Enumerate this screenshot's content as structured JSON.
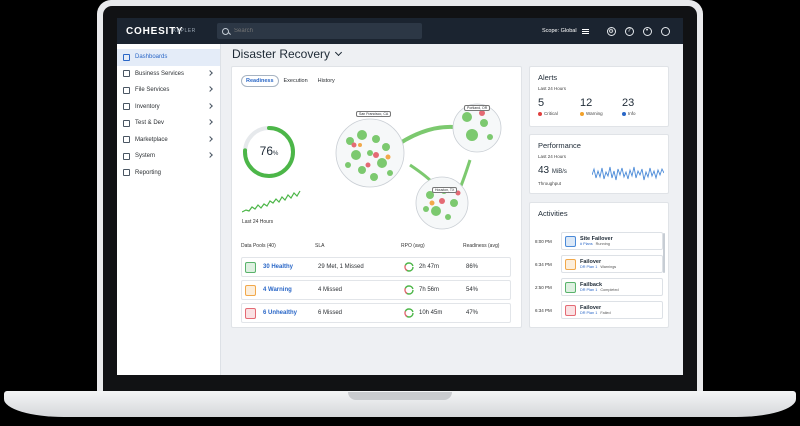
{
  "app": {
    "logo": "COHESITY",
    "product": "KEPLER"
  },
  "topbar": {
    "search_placeholder": "Search",
    "scope_label": "Scope: Global"
  },
  "sidebar": {
    "items": [
      {
        "label": "Dashboards",
        "icon": "dashboard-icon",
        "active": true,
        "chevron": false
      },
      {
        "label": "Business Services",
        "icon": "briefcase-icon",
        "chevron": true
      },
      {
        "label": "File Services",
        "icon": "folder-icon",
        "chevron": true
      },
      {
        "label": "Inventory",
        "icon": "inventory-icon",
        "chevron": true
      },
      {
        "label": "Test & Dev",
        "icon": "test-icon",
        "chevron": true
      },
      {
        "label": "Marketplace",
        "icon": "marketplace-icon",
        "chevron": true
      },
      {
        "label": "System",
        "icon": "system-icon",
        "chevron": true
      },
      {
        "label": "Reporting",
        "icon": "reporting-icon",
        "chevron": false
      }
    ]
  },
  "page": {
    "title": "Disaster Recovery"
  },
  "main": {
    "tabs": [
      {
        "label": "Readiness",
        "active": true
      },
      {
        "label": "Execution"
      },
      {
        "label": "History"
      }
    ],
    "readiness_value": "76",
    "readiness_unit": "%",
    "readiness_fraction": 0.76,
    "last24": "Last 24 Hours",
    "sites": [
      "San Francisco, CA",
      "Portland, OR",
      "Houston, TX"
    ],
    "pools_headers": [
      "Data Pools (40)",
      "SLA",
      "RPO (avg)",
      "Readiness (avg)"
    ],
    "pools": [
      {
        "name": "30 Healthy",
        "sla": "29 Met, 1 Missed",
        "rpo": "2h 47m",
        "readiness": "86%",
        "color": "#59b36b"
      },
      {
        "name": "4 Warning",
        "sla": "4 Missed",
        "rpo": "7h 56m",
        "readiness": "54%",
        "color": "#f1a84a"
      },
      {
        "name": "6 Unhealthy",
        "sla": "6 Missed",
        "rpo": "10h 45m",
        "readiness": "47%",
        "color": "#e46a74"
      }
    ]
  },
  "alerts": {
    "title": "Alerts",
    "sub": "Last 24 Hours",
    "items": [
      {
        "num": "5",
        "label": "Critical",
        "color": "#e0403f"
      },
      {
        "num": "12",
        "label": "Warning",
        "color": "#f2a12a"
      },
      {
        "num": "23",
        "label": "Info",
        "color": "#2a67c7"
      }
    ]
  },
  "performance": {
    "title": "Performance",
    "sub": "Last 24 Hours",
    "value": "43",
    "unit": "MiB/s",
    "label": "Throughput"
  },
  "activities": {
    "title": "Activities",
    "items": [
      {
        "time": "8:00 PM",
        "title": "Site Failover",
        "plan": "# Plans",
        "status": "Running",
        "color": "#4a8ad8"
      },
      {
        "time": "6:34 PM",
        "title": "Failover",
        "plan": "DR Plan 1",
        "status": "Warnings",
        "color": "#f1a84a"
      },
      {
        "time": "2:50 PM",
        "title": "Failback",
        "plan": "DR Plan 1",
        "status": "Completed",
        "color": "#59b36b"
      },
      {
        "time": "6:34 PM",
        "title": "Failover",
        "plan": "DR Plan 1",
        "status": "Failed",
        "color": "#e46a74"
      }
    ]
  },
  "colors": {
    "accent": "#2a67c7",
    "good": "#4cb648",
    "topbar": "#1b2430"
  }
}
